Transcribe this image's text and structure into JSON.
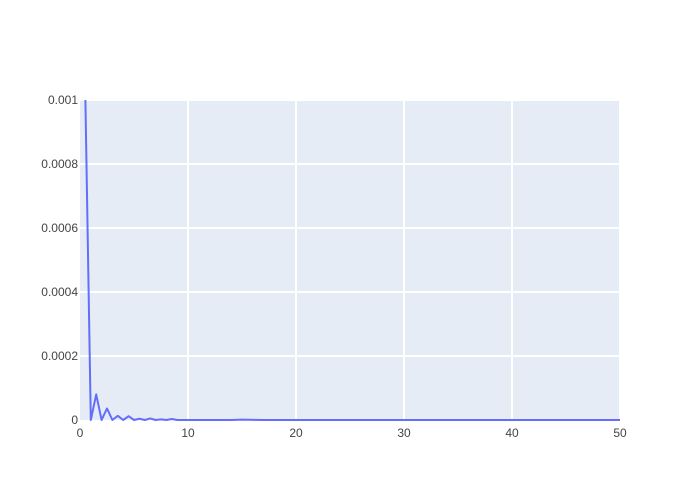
{
  "chart_data": {
    "type": "line",
    "title": "",
    "xlabel": "",
    "ylabel": "",
    "xlim": [
      0,
      50
    ],
    "ylim": [
      0,
      0.001
    ],
    "grid": true,
    "legend": "none",
    "colors": {
      "plot_background": "#e5ecf6",
      "grid": "#ffffff",
      "line": "#636efa",
      "tick_text": "#444444"
    },
    "x_ticks": [
      {
        "value": 0,
        "label": "0"
      },
      {
        "value": 10,
        "label": "10"
      },
      {
        "value": 20,
        "label": "20"
      },
      {
        "value": 30,
        "label": "30"
      },
      {
        "value": 40,
        "label": "40"
      },
      {
        "value": 50,
        "label": "50"
      }
    ],
    "y_ticks": [
      {
        "value": 0,
        "label": "0"
      },
      {
        "value": 0.0002,
        "label": "0.0002"
      },
      {
        "value": 0.0004,
        "label": "0.0004"
      },
      {
        "value": 0.0006,
        "label": "0.0006"
      },
      {
        "value": 0.0008,
        "label": "0.0008"
      },
      {
        "value": 0.001,
        "label": "0.001"
      }
    ],
    "series": [
      {
        "x": [
          0.5,
          1.0,
          1.5,
          2.0,
          2.5,
          3.0,
          3.5,
          4.0,
          4.5,
          5.0,
          5.5,
          6.0,
          6.5,
          7.0,
          7.5,
          8.0,
          8.5,
          9.0,
          10,
          12,
          14,
          15,
          17,
          20,
          25,
          30,
          35,
          40,
          45,
          50
        ],
        "y": [
          0.001,
          0.0,
          8e-05,
          0.0,
          3.6e-05,
          0.0,
          1.3e-05,
          0.0,
          1.2e-05,
          0.0,
          4e-06,
          0.0,
          5e-06,
          0.0,
          2e-06,
          0.0,
          3e-06,
          0.0,
          0.0,
          0.0,
          0.0,
          1e-06,
          0.0,
          0.0,
          0.0,
          0.0,
          0.0,
          0.0,
          0.0,
          0.0
        ]
      }
    ]
  }
}
